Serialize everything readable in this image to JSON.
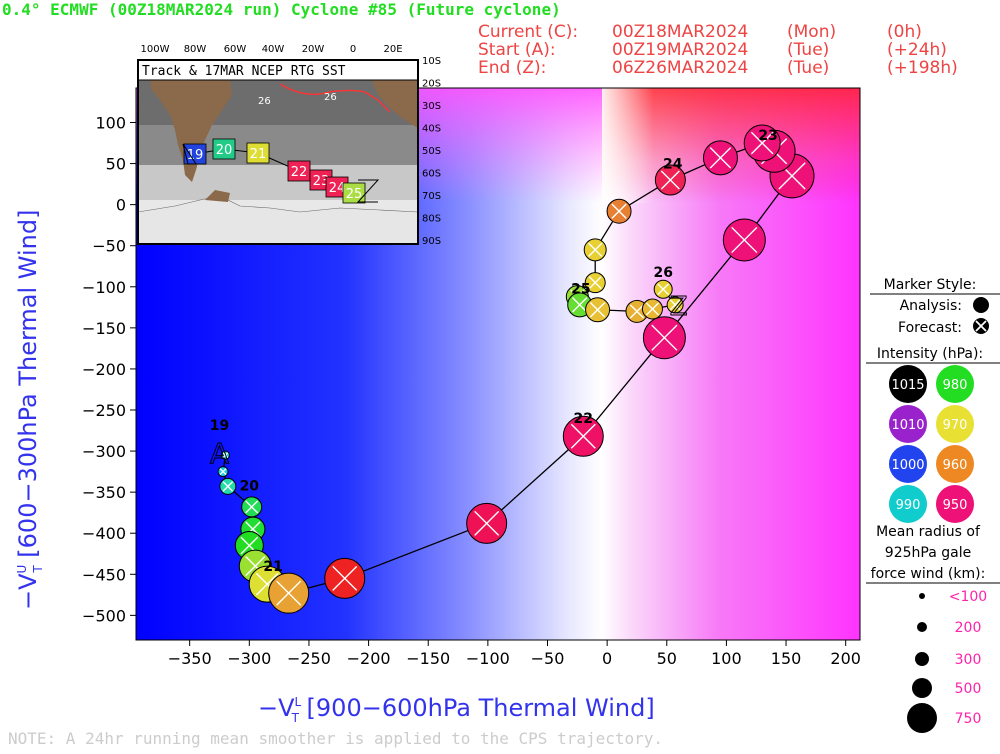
{
  "header": {
    "title": "0.4° ECMWF (00Z18MAR2024 run) Cyclone #85 (Future cyclone)",
    "current": {
      "label": "Current (C):",
      "date": "00Z18MAR2024",
      "day": "(Mon)",
      "offset": "(0h)"
    },
    "start": {
      "label": "Start (A):",
      "date": "00Z19MAR2024",
      "day": "(Tue)",
      "offset": "(+24h)"
    },
    "end": {
      "label": "End (Z):",
      "date": "06Z26MAR2024",
      "day": "(Tue)",
      "offset": "(+198h)"
    }
  },
  "colors": {
    "title_green": "#22dd22",
    "header_red": "#ee4444",
    "axis_blue": "#3333ee",
    "legend_magenta": "#ff22aa"
  },
  "chart_data": {
    "type": "scatter",
    "xlabel_main": "−V",
    "xlabel_sup": "L",
    "xlabel_sub": "T",
    "xlabel_rest": "[900−600hPa Thermal Wind]",
    "ylabel_main": "−V",
    "ylabel_sup": "U",
    "ylabel_sub": "T",
    "ylabel_rest": "[600−300hPa Thermal Wind]",
    "xlim": [
      -395,
      212
    ],
    "ylim": [
      -530,
      142
    ],
    "xticks": [
      -350,
      -300,
      -250,
      -200,
      -150,
      -100,
      -50,
      0,
      50,
      100,
      150,
      200
    ],
    "yticks": [
      100,
      50,
      0,
      -50,
      -100,
      -150,
      -200,
      -250,
      -300,
      -350,
      -400,
      -450,
      -500
    ],
    "start_marker": {
      "letter": "A",
      "x": -325,
      "y": -290
    },
    "end_marker": {
      "letter": "Z",
      "x": 60,
      "y": -120
    },
    "day_labels": [
      {
        "text": "19",
        "x": -325,
        "y": -268
      },
      {
        "text": "20",
        "x": -300,
        "y": -342
      },
      {
        "text": "21",
        "x": -280,
        "y": -440
      },
      {
        "text": "22",
        "x": -20,
        "y": -260
      },
      {
        "text": "23",
        "x": 135,
        "y": 85
      },
      {
        "text": "24",
        "x": 55,
        "y": 50
      },
      {
        "text": "25",
        "x": -22,
        "y": -102
      },
      {
        "text": "26",
        "x": 47,
        "y": -82
      }
    ],
    "points": [
      {
        "x": -320,
        "y": -305,
        "r": 4,
        "color": "#11d0e0",
        "type": "forecast"
      },
      {
        "x": -322,
        "y": -325,
        "r": 5,
        "color": "#11d0e0",
        "type": "forecast"
      },
      {
        "x": -318,
        "y": -343,
        "r": 8,
        "color": "#22ddaa",
        "type": "forecast"
      },
      {
        "x": -298,
        "y": -368,
        "r": 10,
        "color": "#22dd55",
        "type": "forecast"
      },
      {
        "x": -297,
        "y": -395,
        "r": 12,
        "color": "#22dd33",
        "type": "forecast"
      },
      {
        "x": -300,
        "y": -415,
        "r": 14,
        "color": "#22dd22",
        "type": "forecast"
      },
      {
        "x": -295,
        "y": -440,
        "r": 16,
        "color": "#99e033",
        "type": "forecast"
      },
      {
        "x": -285,
        "y": -462,
        "r": 18,
        "color": "#dde033",
        "type": "forecast"
      },
      {
        "x": -267,
        "y": -473,
        "r": 20,
        "color": "#e8a233",
        "type": "forecast"
      },
      {
        "x": -220,
        "y": -455,
        "r": 20,
        "color": "#ee2222",
        "type": "forecast"
      },
      {
        "x": -101,
        "y": -388,
        "r": 20,
        "color": "#ee1155",
        "type": "forecast"
      },
      {
        "x": -20,
        "y": -282,
        "r": 20,
        "color": "#ee1166",
        "type": "forecast"
      },
      {
        "x": 48,
        "y": -162,
        "r": 21,
        "color": "#ee1177",
        "type": "forecast"
      },
      {
        "x": 115,
        "y": -43,
        "r": 21,
        "color": "#ee1177",
        "type": "forecast"
      },
      {
        "x": 155,
        "y": 35,
        "r": 22,
        "color": "#ee1177",
        "type": "forecast"
      },
      {
        "x": 140,
        "y": 65,
        "r": 21,
        "color": "#ee1177",
        "type": "forecast"
      },
      {
        "x": 130,
        "y": 75,
        "r": 18,
        "color": "#ee1177",
        "type": "forecast"
      },
      {
        "x": 95,
        "y": 57,
        "r": 17,
        "color": "#ee1177",
        "type": "forecast"
      },
      {
        "x": 53,
        "y": 30,
        "r": 15,
        "color": "#ee2255",
        "type": "forecast"
      },
      {
        "x": 10,
        "y": -8,
        "r": 12,
        "color": "#e88033",
        "type": "forecast"
      },
      {
        "x": -10,
        "y": -55,
        "r": 11,
        "color": "#e8d033",
        "type": "forecast"
      },
      {
        "x": -10,
        "y": -95,
        "r": 10,
        "color": "#e8d033",
        "type": "forecast"
      },
      {
        "x": -25,
        "y": -112,
        "r": 11,
        "color": "#99e033",
        "type": "forecast"
      },
      {
        "x": -23,
        "y": -122,
        "r": 12,
        "color": "#66dd33",
        "type": "forecast"
      },
      {
        "x": -8,
        "y": -128,
        "r": 12,
        "color": "#e8c033",
        "type": "forecast"
      },
      {
        "x": 25,
        "y": -130,
        "r": 11,
        "color": "#e8b033",
        "type": "forecast"
      },
      {
        "x": 38,
        "y": -127,
        "r": 10,
        "color": "#e8b833",
        "type": "forecast"
      },
      {
        "x": 57,
        "y": -122,
        "r": 8,
        "color": "#e8d033",
        "type": "forecast"
      },
      {
        "x": 47,
        "y": -103,
        "r": 9,
        "color": "#e8d033",
        "type": "forecast"
      }
    ],
    "inset_map": {
      "title": "Track & 17MAR NCEP RTG SST",
      "lon_labels": [
        "100W",
        "80W",
        "60W",
        "40W",
        "20W",
        "0",
        "20E"
      ],
      "lat_labels": [
        "10S",
        "20S",
        "30S",
        "40S",
        "50S",
        "60S",
        "70S",
        "80S",
        "90S"
      ],
      "track_days": [
        {
          "text": "19",
          "color": "#2244dd"
        },
        {
          "text": "20",
          "color": "#22cc88"
        },
        {
          "text": "21",
          "color": "#dddd33"
        },
        {
          "text": "22",
          "color": "#ee2255"
        },
        {
          "text": "23",
          "color": "#ee2255"
        },
        {
          "text": "24",
          "color": "#ee2255"
        },
        {
          "text": "25",
          "color": "#aadd44"
        }
      ],
      "contour_labels": [
        "26",
        "26"
      ]
    }
  },
  "legend": {
    "marker_style_title": "Marker Style:",
    "analysis_label": "Analysis:",
    "forecast_label": "Forecast:",
    "intensity_title": "Intensity (hPa):",
    "intensity": [
      {
        "label": "1015",
        "color": "#000000"
      },
      {
        "label": "980",
        "color": "#22dd22"
      },
      {
        "label": "1010",
        "color": "#9922cc"
      },
      {
        "label": "970",
        "color": "#e8e033"
      },
      {
        "label": "1000",
        "color": "#2244ee"
      },
      {
        "label": "960",
        "color": "#ee8822"
      },
      {
        "label": "990",
        "color": "#11cccc"
      },
      {
        "label": "950",
        "color": "#ee1177"
      }
    ],
    "radius_title_1": "Mean radius of",
    "radius_title_2": "925hPa gale",
    "radius_title_3": "force wind (km):",
    "radius": [
      {
        "label": "<100",
        "r": 3
      },
      {
        "label": "200",
        "r": 5
      },
      {
        "label": "300",
        "r": 7
      },
      {
        "label": "500",
        "r": 10
      },
      {
        "label": "750",
        "r": 15
      }
    ]
  },
  "footer": {
    "note": "NOTE: A 24hr running mean smoother is applied to the CPS trajectory."
  }
}
